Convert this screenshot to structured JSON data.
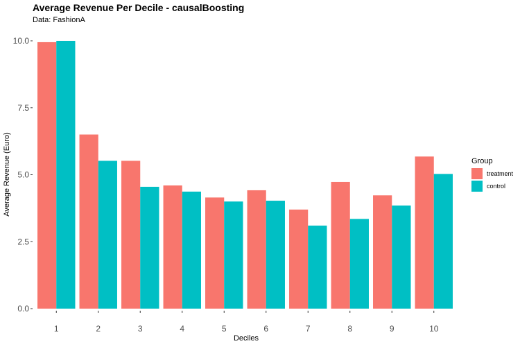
{
  "chart_data": {
    "type": "bar",
    "title": "Average Revenue Per Decile - causalBoosting",
    "subtitle": "Data: FashionA",
    "xlabel": "Deciles",
    "ylabel": "Average Revenue (Euro)",
    "categories": [
      "1",
      "2",
      "3",
      "4",
      "5",
      "6",
      "7",
      "8",
      "9",
      "10"
    ],
    "series": [
      {
        "name": "treatment",
        "color": "#F8766D",
        "values": [
          9.95,
          6.5,
          5.52,
          4.6,
          4.15,
          4.42,
          3.7,
          4.73,
          4.23,
          5.68
        ]
      },
      {
        "name": "control",
        "color": "#00BFC4",
        "values": [
          10.0,
          5.52,
          4.55,
          4.37,
          4.0,
          4.03,
          3.1,
          3.35,
          3.85,
          5.03
        ]
      }
    ],
    "ylim": [
      0,
      10
    ],
    "yticks": [
      "0.0",
      "2.5",
      "5.0",
      "7.5",
      "10.0"
    ],
    "grid": false,
    "legend": {
      "title": "Group",
      "placement": "right"
    }
  }
}
